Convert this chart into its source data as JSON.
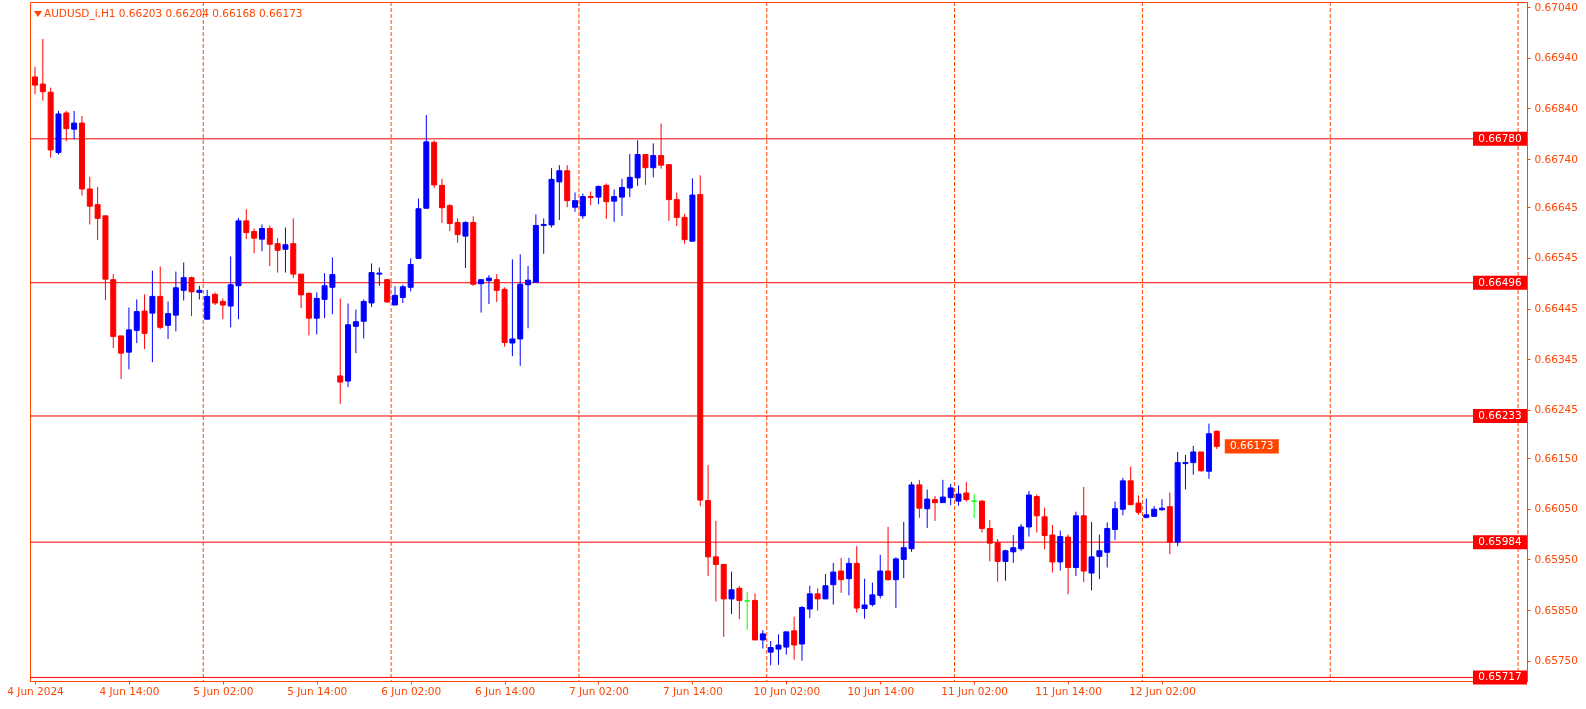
{
  "chart_data": {
    "type": "candlestick",
    "title": "AUDUSD_i,H1 0.66203 0.66204 0.66168 0.66173",
    "categories": [
      "4 Jun 2024",
      null,
      null,
      null,
      null,
      null,
      null,
      null,
      null,
      null,
      null,
      null,
      "4 Jun 14:00",
      null,
      null,
      null,
      null,
      null,
      null,
      null,
      null,
      null,
      null,
      null,
      "5 Jun 02:00",
      null,
      null,
      null,
      null,
      null,
      null,
      null,
      null,
      null,
      null,
      null,
      "5 Jun 14:00",
      null,
      null,
      null,
      null,
      null,
      null,
      null,
      null,
      null,
      null,
      null,
      "6 Jun 02:00",
      null,
      null,
      null,
      null,
      null,
      null,
      null,
      null,
      null,
      null,
      null,
      "6 Jun 14:00",
      null,
      null,
      null,
      null,
      null,
      null,
      null,
      null,
      null,
      null,
      null,
      "7 Jun 02:00",
      null,
      null,
      null,
      null,
      null,
      null,
      null,
      null,
      null,
      null,
      null,
      "7 Jun 14:00",
      null,
      null,
      null,
      null,
      null,
      null,
      null,
      null,
      null,
      null,
      null,
      "10 Jun 02:00",
      null,
      null,
      null,
      null,
      null,
      null,
      null,
      null,
      null,
      null,
      null,
      "10 Jun 14:00",
      null,
      null,
      null,
      null,
      null,
      null,
      null,
      null,
      null,
      null,
      null,
      "11 Jun 02:00",
      null,
      null,
      null,
      null,
      null,
      null,
      null,
      null,
      null,
      null,
      null,
      "11 Jun 14:00",
      null,
      null,
      null,
      null,
      null,
      null,
      null,
      null,
      null,
      null,
      null,
      "12 Jun 02:00",
      null,
      null,
      null,
      null,
      null,
      null,
      null,
      null,
      null,
      null,
      null,
      null,
      null,
      null,
      null,
      null,
      null,
      null,
      null,
      null,
      null,
      null,
      null,
      null,
      null,
      null,
      null,
      null,
      null,
      null,
      null,
      null,
      null,
      null,
      null,
      null,
      null,
      null,
      null,
      null,
      null,
      null,
      null,
      null,
      null,
      null
    ],
    "ohlc": [
      [
        0.66902,
        0.66922,
        0.66868,
        0.66886
      ],
      [
        0.66888,
        0.66977,
        0.66855,
        0.66873
      ],
      [
        0.66872,
        0.66881,
        0.66743,
        0.66758
      ],
      [
        0.66753,
        0.66835,
        0.66749,
        0.66829
      ],
      [
        0.66831,
        0.66835,
        0.66775,
        0.668
      ],
      [
        0.66799,
        0.66835,
        0.66779,
        0.66811
      ],
      [
        0.66811,
        0.66825,
        0.66668,
        0.66681
      ],
      [
        0.66681,
        0.66705,
        0.66611,
        0.66647
      ],
      [
        0.6665,
        0.66685,
        0.6658,
        0.66623
      ],
      [
        0.66628,
        0.66628,
        0.66462,
        0.66503
      ],
      [
        0.66502,
        0.66513,
        0.66367,
        0.6639
      ],
      [
        0.66391,
        0.66391,
        0.66306,
        0.66357
      ],
      [
        0.66359,
        0.66447,
        0.66325,
        0.66403
      ],
      [
        0.66402,
        0.66463,
        0.66377,
        0.66439
      ],
      [
        0.6644,
        0.66473,
        0.66365,
        0.66396
      ],
      [
        0.66436,
        0.6652,
        0.66339,
        0.66469
      ],
      [
        0.66469,
        0.66528,
        0.66404,
        0.66408
      ],
      [
        0.66412,
        0.66459,
        0.66385,
        0.66435
      ],
      [
        0.66432,
        0.66518,
        0.664,
        0.66486
      ],
      [
        0.66481,
        0.66536,
        0.66461,
        0.66506
      ],
      [
        0.66506,
        0.66508,
        0.6643,
        0.66478
      ],
      [
        0.66477,
        0.6649,
        0.66463,
        0.66481
      ],
      [
        0.66424,
        0.66482,
        0.66424,
        0.66469
      ],
      [
        0.66473,
        0.66477,
        0.66452,
        0.66456
      ],
      [
        0.66459,
        0.66465,
        0.66424,
        0.66452
      ],
      [
        0.6645,
        0.66548,
        0.66408,
        0.66492
      ],
      [
        0.6649,
        0.66624,
        0.66424,
        0.66618
      ],
      [
        0.66618,
        0.66641,
        0.66582,
        0.66595
      ],
      [
        0.66597,
        0.66603,
        0.66554,
        0.66584
      ],
      [
        0.66582,
        0.66611,
        0.66558,
        0.66603
      ],
      [
        0.66603,
        0.66609,
        0.66529,
        0.66572
      ],
      [
        0.66573,
        0.66584,
        0.66516,
        0.6656
      ],
      [
        0.66562,
        0.66605,
        0.66516,
        0.66571
      ],
      [
        0.66573,
        0.66623,
        0.66505,
        0.66513
      ],
      [
        0.66513,
        0.66513,
        0.66446,
        0.66472
      ],
      [
        0.66475,
        0.66477,
        0.66392,
        0.66426
      ],
      [
        0.66426,
        0.66477,
        0.66394,
        0.66465
      ],
      [
        0.66463,
        0.66515,
        0.66426,
        0.6649
      ],
      [
        0.66487,
        0.66546,
        0.66434,
        0.66512
      ],
      [
        0.66312,
        0.66465,
        0.66257,
        0.663
      ],
      [
        0.66302,
        0.66455,
        0.6629,
        0.66413
      ],
      [
        0.6641,
        0.66443,
        0.66357,
        0.66419
      ],
      [
        0.6642,
        0.66463,
        0.66386,
        0.66459
      ],
      [
        0.66456,
        0.66534,
        0.66448,
        0.66516
      ],
      [
        0.66513,
        0.66526,
        0.6649,
        0.66515
      ],
      [
        0.66502,
        0.66502,
        0.66456,
        0.66458
      ],
      [
        0.66452,
        0.66489,
        0.66452,
        0.66471
      ],
      [
        0.66467,
        0.66492,
        0.66456,
        0.66488
      ],
      [
        0.66487,
        0.66544,
        0.66479,
        0.66532
      ],
      [
        0.66544,
        0.66662,
        0.66544,
        0.66642
      ],
      [
        0.66643,
        0.66827,
        0.66643,
        0.66774
      ],
      [
        0.66773,
        0.66777,
        0.66683,
        0.66689
      ],
      [
        0.66688,
        0.66701,
        0.66614,
        0.66644
      ],
      [
        0.66648,
        0.66651,
        0.66598,
        0.66613
      ],
      [
        0.66615,
        0.66623,
        0.66575,
        0.66591
      ],
      [
        0.66588,
        0.66617,
        0.66525,
        0.66615
      ],
      [
        0.66615,
        0.66627,
        0.6649,
        0.66493
      ],
      [
        0.66494,
        0.66502,
        0.66437,
        0.66502
      ],
      [
        0.665,
        0.66511,
        0.66454,
        0.66505
      ],
      [
        0.66502,
        0.66513,
        0.66458,
        0.66481
      ],
      [
        0.66483,
        0.66487,
        0.6637,
        0.66378
      ],
      [
        0.66377,
        0.66542,
        0.66351,
        0.66385
      ],
      [
        0.66385,
        0.66552,
        0.66332,
        0.66493
      ],
      [
        0.66492,
        0.66529,
        0.66406,
        0.66501
      ],
      [
        0.66497,
        0.66631,
        0.66497,
        0.66609
      ],
      [
        0.66609,
        0.66623,
        0.66553,
        0.66611
      ],
      [
        0.6661,
        0.66722,
        0.66605,
        0.667
      ],
      [
        0.66695,
        0.66728,
        0.6662,
        0.66717
      ],
      [
        0.66717,
        0.66728,
        0.66645,
        0.66658
      ],
      [
        0.66645,
        0.66674,
        0.66636,
        0.66658
      ],
      [
        0.66628,
        0.66672,
        0.66622,
        0.66666
      ],
      [
        0.66666,
        0.66676,
        0.66649,
        0.66664
      ],
      [
        0.66665,
        0.66688,
        0.66651,
        0.66686
      ],
      [
        0.66688,
        0.66692,
        0.66622,
        0.66656
      ],
      [
        0.66657,
        0.6668,
        0.66616,
        0.66666
      ],
      [
        0.66665,
        0.66701,
        0.66628,
        0.66684
      ],
      [
        0.66683,
        0.6675,
        0.66665,
        0.66704
      ],
      [
        0.66703,
        0.66777,
        0.66687,
        0.66749
      ],
      [
        0.66749,
        0.66749,
        0.66689,
        0.66723
      ],
      [
        0.66723,
        0.66771,
        0.66704,
        0.66747
      ],
      [
        0.66747,
        0.6681,
        0.66721,
        0.66728
      ],
      [
        0.66729,
        0.66729,
        0.66618,
        0.6666
      ],
      [
        0.6666,
        0.66674,
        0.66608,
        0.66625
      ],
      [
        0.66625,
        0.66632,
        0.66573,
        0.66581
      ],
      [
        0.66578,
        0.66702,
        0.66578,
        0.66669
      ],
      [
        0.6667,
        0.66708,
        0.66055,
        0.66067
      ],
      [
        0.66066,
        0.66136,
        0.65917,
        0.65955
      ],
      [
        0.65955,
        0.66026,
        0.65867,
        0.6594
      ],
      [
        0.6594,
        0.6594,
        0.65797,
        0.65872
      ],
      [
        0.65872,
        0.65926,
        0.65842,
        0.6589
      ],
      [
        0.65893,
        0.65897,
        0.65832,
        0.65869
      ],
      [
        0.65868,
        0.65886,
        0.65811,
        0.65868
      ],
      [
        0.65869,
        0.65883,
        0.65791,
        0.65791
      ],
      [
        0.65791,
        0.6581,
        0.65774,
        0.65803
      ],
      [
        0.65767,
        0.65789,
        0.65741,
        0.65776
      ],
      [
        0.65773,
        0.65802,
        0.65742,
        0.65781
      ],
      [
        0.65777,
        0.65807,
        0.65762,
        0.65807
      ],
      [
        0.65809,
        0.65837,
        0.65752,
        0.65781
      ],
      [
        0.65783,
        0.65858,
        0.6575,
        0.65855
      ],
      [
        0.65852,
        0.65898,
        0.65834,
        0.65882
      ],
      [
        0.65882,
        0.65893,
        0.65849,
        0.65872
      ],
      [
        0.65872,
        0.65921,
        0.65872,
        0.65898
      ],
      [
        0.659,
        0.65943,
        0.65861,
        0.65925
      ],
      [
        0.65927,
        0.65953,
        0.65884,
        0.6591
      ],
      [
        0.65912,
        0.65953,
        0.65879,
        0.65942
      ],
      [
        0.65942,
        0.65976,
        0.65845,
        0.65854
      ],
      [
        0.65853,
        0.65912,
        0.65833,
        0.6586
      ],
      [
        0.65861,
        0.65904,
        0.65857,
        0.6588
      ],
      [
        0.65879,
        0.65959,
        0.65873,
        0.65927
      ],
      [
        0.65927,
        0.66014,
        0.65908,
        0.6591
      ],
      [
        0.6591,
        0.65954,
        0.65854,
        0.65951
      ],
      [
        0.6595,
        0.66024,
        0.65913,
        0.65973
      ],
      [
        0.65971,
        0.66103,
        0.65965,
        0.66097
      ],
      [
        0.66097,
        0.66107,
        0.66032,
        0.66051
      ],
      [
        0.6605,
        0.66088,
        0.66012,
        0.66069
      ],
      [
        0.66068,
        0.66075,
        0.66026,
        0.66062
      ],
      [
        0.66062,
        0.66107,
        0.66062,
        0.66073
      ],
      [
        0.66072,
        0.66099,
        0.66057,
        0.66091
      ],
      [
        0.66065,
        0.66096,
        0.66056,
        0.66079
      ],
      [
        0.66081,
        0.66103,
        0.66064,
        0.66068
      ],
      [
        0.66065,
        0.66079,
        0.66032,
        0.66065
      ],
      [
        0.66065,
        0.66067,
        0.66003,
        0.66011
      ],
      [
        0.66011,
        0.66028,
        0.65946,
        0.65982
      ],
      [
        0.65983,
        0.6599,
        0.65906,
        0.65946
      ],
      [
        0.65946,
        0.65969,
        0.65908,
        0.65967
      ],
      [
        0.65965,
        0.65998,
        0.65943,
        0.65973
      ],
      [
        0.65971,
        0.6602,
        0.65967,
        0.66014
      ],
      [
        0.66014,
        0.66085,
        0.65995,
        0.66077
      ],
      [
        0.66074,
        0.66078,
        0.66003,
        0.66036
      ],
      [
        0.66034,
        0.66052,
        0.6597,
        0.65997
      ],
      [
        0.65998,
        0.66018,
        0.65924,
        0.65945
      ],
      [
        0.65945,
        0.66007,
        0.65928,
        0.65995
      ],
      [
        0.65994,
        0.65999,
        0.65881,
        0.65934
      ],
      [
        0.65934,
        0.66044,
        0.65917,
        0.66036
      ],
      [
        0.66036,
        0.66093,
        0.65905,
        0.65927
      ],
      [
        0.65923,
        0.66024,
        0.65889,
        0.65955
      ],
      [
        0.65956,
        0.65999,
        0.65911,
        0.65967
      ],
      [
        0.65964,
        0.66023,
        0.65934,
        0.66011
      ],
      [
        0.66009,
        0.66064,
        0.65988,
        0.6605
      ],
      [
        0.66049,
        0.66111,
        0.66037,
        0.66105
      ],
      [
        0.66105,
        0.66133,
        0.66057,
        0.66058
      ],
      [
        0.66061,
        0.66076,
        0.66038,
        0.66043
      ],
      [
        0.66033,
        0.6607,
        0.66031,
        0.66038
      ],
      [
        0.66035,
        0.66055,
        0.66035,
        0.66049
      ],
      [
        0.66048,
        0.66069,
        0.66046,
        0.66051
      ],
      [
        0.66054,
        0.66082,
        0.6596,
        0.65984
      ],
      [
        0.65984,
        0.66162,
        0.65976,
        0.66141
      ],
      [
        0.66139,
        0.66156,
        0.66088,
        0.66141
      ],
      [
        0.66141,
        0.66174,
        0.66117,
        0.66162
      ],
      [
        0.66162,
        0.66162,
        0.66123,
        0.66125
      ],
      [
        0.66124,
        0.66218,
        0.66109,
        0.66198
      ],
      [
        0.66203,
        0.66204,
        0.66168,
        0.66173
      ],
      null,
      null,
      null,
      null,
      null,
      null,
      null,
      null,
      null,
      null,
      null,
      null,
      null,
      null,
      null,
      null,
      null,
      null,
      null,
      null,
      null,
      null,
      null,
      null,
      null,
      null,
      null,
      null,
      null,
      null,
      null,
      null,
      null,
      null,
      null,
      null,
      null,
      null,
      null
    ],
    "colors": [
      "#ff0000",
      "#ff0000",
      "#ff0000",
      "#0000ff",
      "#ff0000",
      "#0000ff",
      "#ff0000",
      "#ff0000",
      "#ff0000",
      "#ff0000",
      "#ff0000",
      "#ff0000",
      "#0000ff",
      "#0000ff",
      "#ff0000",
      "#0000ff",
      "#ff0000",
      "#0000ff",
      "#0000ff",
      "#0000ff",
      "#ff0000",
      "#0000ff",
      "#0000ff",
      "#ff0000",
      "#ff0000",
      "#0000ff",
      "#0000ff",
      "#ff0000",
      "#ff0000",
      "#0000ff",
      "#ff0000",
      "#ff0000",
      "#0000ff",
      "#ff0000",
      "#ff0000",
      "#ff0000",
      "#0000ff",
      "#0000ff",
      "#0000ff",
      "#ff0000",
      "#0000ff",
      "#0000ff",
      "#0000ff",
      "#0000ff",
      "#0000ff",
      "#ff0000",
      "#0000ff",
      "#0000ff",
      "#0000ff",
      "#0000ff",
      "#0000ff",
      "#ff0000",
      "#ff0000",
      "#ff0000",
      "#ff0000",
      "#0000ff",
      "#ff0000",
      "#0000ff",
      "#0000ff",
      "#ff0000",
      "#ff0000",
      "#0000ff",
      "#0000ff",
      "#0000ff",
      "#0000ff",
      "#0000ff",
      "#0000ff",
      "#0000ff",
      "#ff0000",
      "#0000ff",
      "#0000ff",
      "#ff0000",
      "#0000ff",
      "#ff0000",
      "#0000ff",
      "#0000ff",
      "#0000ff",
      "#0000ff",
      "#ff0000",
      "#0000ff",
      "#ff0000",
      "#ff0000",
      "#ff0000",
      "#ff0000",
      "#0000ff",
      "#ff0000",
      "#ff0000",
      "#ff0000",
      "#ff0000",
      "#0000ff",
      "#ff0000",
      "#00ff00",
      "#ff0000",
      "#0000ff",
      "#0000ff",
      "#0000ff",
      "#0000ff",
      "#ff0000",
      "#0000ff",
      "#0000ff",
      "#ff0000",
      "#0000ff",
      "#0000ff",
      "#ff0000",
      "#0000ff",
      "#ff0000",
      "#0000ff",
      "#0000ff",
      "#0000ff",
      "#ff0000",
      "#0000ff",
      "#0000ff",
      "#0000ff",
      "#ff0000",
      "#0000ff",
      "#ff0000",
      "#0000ff",
      "#0000ff",
      "#0000ff",
      "#ff0000",
      "#00ff00",
      "#ff0000",
      "#ff0000",
      "#ff0000",
      "#0000ff",
      "#0000ff",
      "#0000ff",
      "#0000ff",
      "#ff0000",
      "#ff0000",
      "#ff0000",
      "#0000ff",
      "#ff0000",
      "#0000ff",
      "#ff0000",
      "#0000ff",
      "#0000ff",
      "#0000ff",
      "#0000ff",
      "#0000ff",
      "#ff0000",
      "#ff0000",
      "#0000ff",
      "#0000ff",
      "#0000ff",
      "#ff0000",
      "#0000ff",
      "#0000ff",
      "#0000ff",
      "#ff0000",
      "#0000ff",
      "#ff0000",
      null,
      null,
      null,
      null,
      null,
      null,
      null,
      null,
      null,
      null,
      null,
      null,
      null,
      null,
      null,
      null,
      null,
      null,
      null,
      null,
      null,
      null,
      null,
      null,
      null,
      null,
      null,
      null,
      null,
      null,
      null,
      null,
      null,
      null,
      null,
      null,
      null,
      null,
      null
    ],
    "ylim": [
      0.6571,
      0.6705
    ],
    "yticks": [
      {
        "value": 0.6704,
        "label": "0.67040"
      },
      {
        "value": 0.6694,
        "label": "0.66940"
      },
      {
        "value": 0.6684,
        "label": "0.66840"
      },
      {
        "value": 0.6674,
        "label": "0.66740"
      },
      0.66645,
      0.66545,
      0.66445,
      0.66345,
      0.66245,
      {
        "value": 0.6615,
        "label": "0.66150"
      },
      {
        "value": 0.6605,
        "label": "0.66050"
      },
      {
        "value": 0.6595,
        "label": "0.65950"
      },
      {
        "value": 0.6585,
        "label": "0.65850"
      },
      {
        "value": 0.6575,
        "label": "0.65750"
      }
    ],
    "ref_lines": [
      {
        "axis": "y",
        "value": 0.6678,
        "label": "0.66780",
        "color": "#ff0000"
      },
      {
        "axis": "y",
        "value": 0.66496,
        "label": "0.66496",
        "color": "#ff0000"
      },
      {
        "axis": "y",
        "value": 0.66233,
        "label": "0.66233",
        "color": "#ff0000"
      },
      {
        "axis": "y",
        "value": 0.65984,
        "label": "0.65984",
        "color": "#ff0000"
      },
      {
        "axis": "y",
        "value": 0.65717,
        "label": "0.65717",
        "color": "#ff0000"
      }
    ],
    "annotations": [
      "0.66173"
    ]
  }
}
